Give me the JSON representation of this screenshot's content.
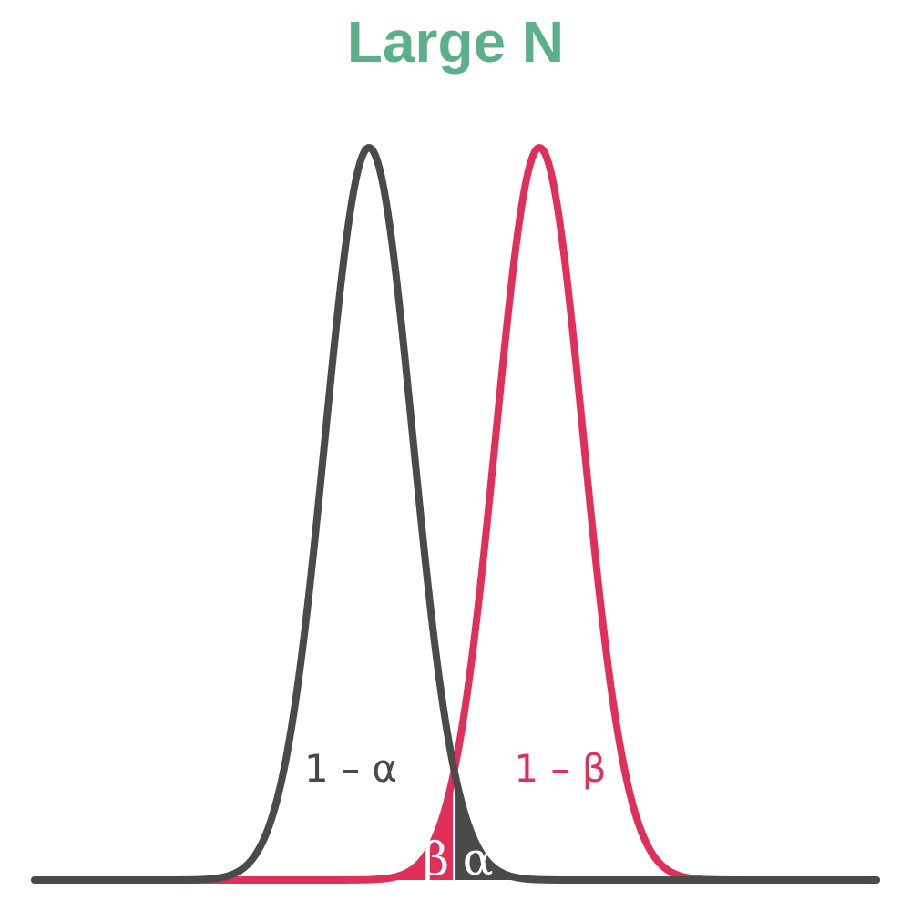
{
  "title": "Large N",
  "colors": {
    "title": "#5bb08b",
    "null_curve": "#4a4a4a",
    "alt_curve": "#e0305a",
    "background": "#ffffff"
  },
  "chart_data": {
    "type": "area",
    "distributions": [
      {
        "mean": 0,
        "sd": 1
      },
      {
        "mean": 3.9,
        "sd": 1
      }
    ],
    "critical_value": 1.95,
    "labels": {
      "null_body": "1 – α",
      "alt_body": "1 – β",
      "alpha": "α",
      "beta": "β"
    }
  }
}
